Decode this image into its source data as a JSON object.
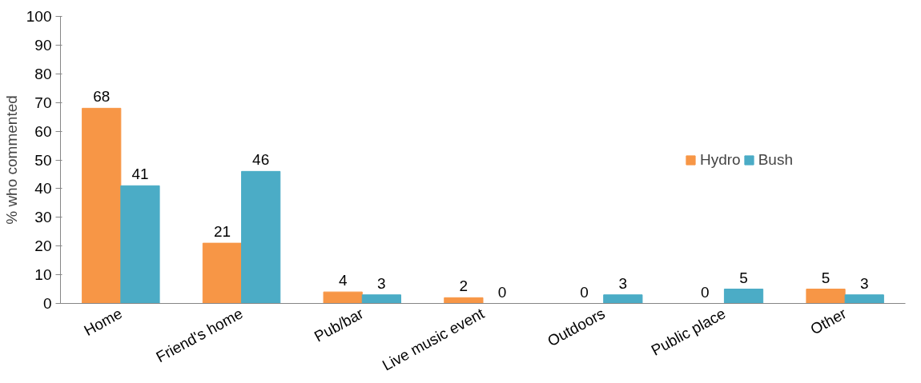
{
  "chart_data": {
    "type": "bar",
    "ylabel": "% who commented",
    "categories": [
      "Home",
      "Friend's home",
      "Pub/bar",
      "Live music event",
      "Outdoors",
      "Public place",
      "Other"
    ],
    "series": [
      {
        "name": "Hydro",
        "color": "#f79646",
        "values": [
          68,
          21,
          4,
          2,
          0,
          0,
          5
        ]
      },
      {
        "name": "Bush",
        "color": "#4bacc6",
        "values": [
          41,
          46,
          3,
          0,
          3,
          5,
          3
        ]
      }
    ],
    "ylim": [
      0,
      100
    ],
    "yticks": [
      0,
      10,
      20,
      30,
      40,
      50,
      60,
      70,
      80,
      90,
      100
    ],
    "grid": false,
    "legend": "right",
    "data_labels": true
  }
}
